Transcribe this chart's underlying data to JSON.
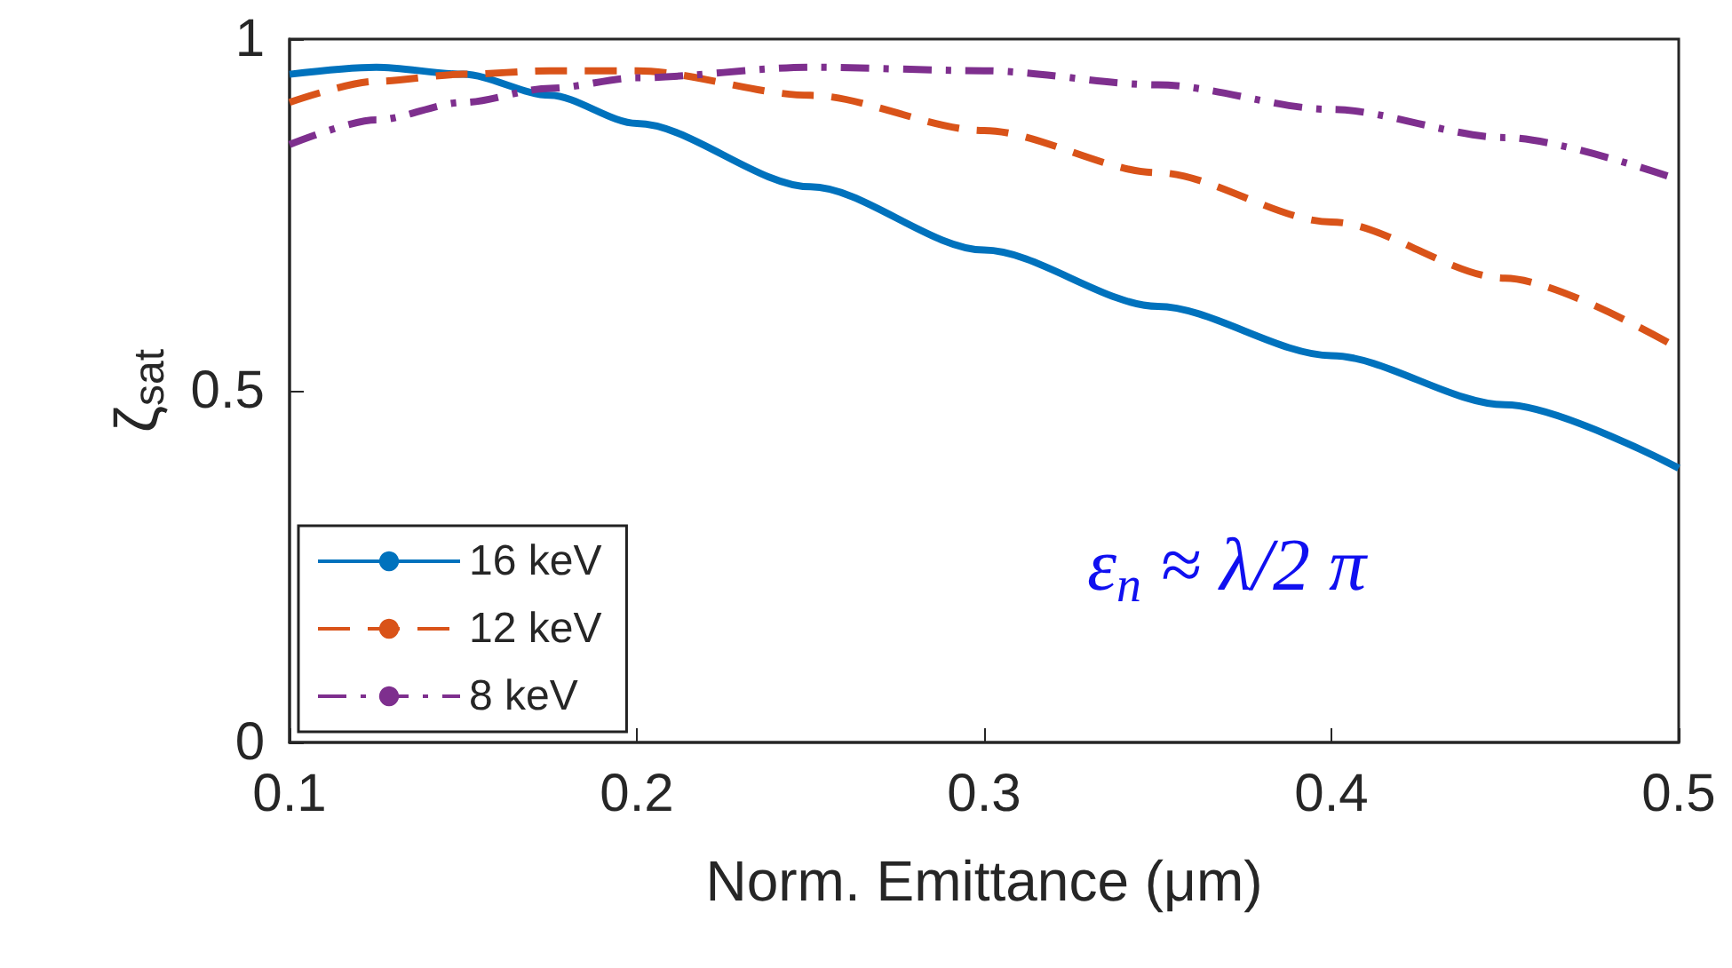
{
  "chart_data": {
    "type": "line",
    "xlabel": "Norm. Emittance (μm)",
    "ylabel": "ζ$_{sat}$",
    "x": [
      0.1,
      0.125,
      0.15,
      0.175,
      0.2,
      0.25,
      0.3,
      0.35,
      0.4,
      0.45,
      0.5
    ],
    "series": [
      {
        "name": "16 keV",
        "color": "#0072bd",
        "line_style": "solid",
        "values": [
          0.95,
          0.96,
          0.95,
          0.92,
          0.88,
          0.79,
          0.7,
          0.62,
          0.55,
          0.48,
          0.39
        ]
      },
      {
        "name": "12 keV",
        "color": "#d95319",
        "line_style": "dashed",
        "values": [
          0.91,
          0.94,
          0.95,
          0.955,
          0.955,
          0.92,
          0.87,
          0.81,
          0.74,
          0.66,
          0.56
        ]
      },
      {
        "name": "8 keV",
        "color": "#7e2f8e",
        "line_style": "dashdot",
        "values": [
          0.85,
          0.885,
          0.91,
          0.93,
          0.945,
          0.96,
          0.955,
          0.935,
          0.9,
          0.86,
          0.8
        ]
      }
    ],
    "annotations": [
      "ε$_{n}$ ≈ λ/2 π"
    ],
    "xlim": [
      0.1,
      0.5
    ],
    "xticks": [
      0.1,
      0.2,
      0.3,
      0.4,
      0.5
    ],
    "ylim": [
      0,
      1
    ],
    "yticks": [
      0,
      0.5,
      1
    ],
    "grid": false,
    "legend": "bottom left"
  }
}
